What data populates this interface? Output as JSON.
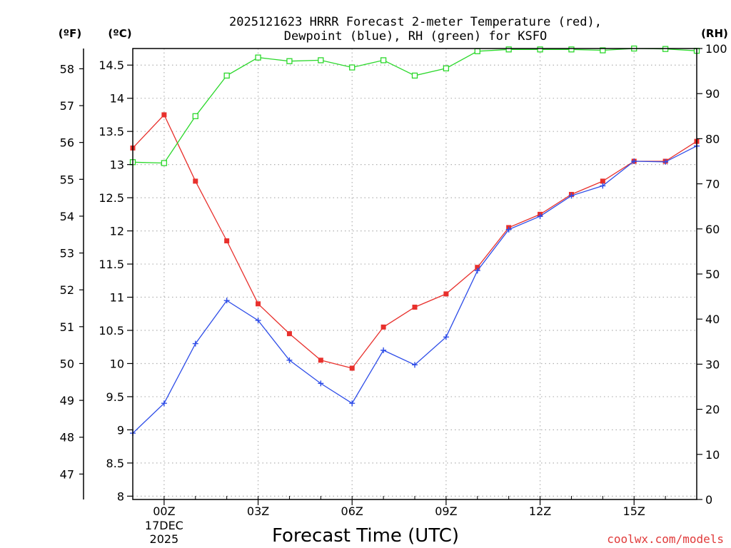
{
  "chart_data": {
    "type": "line",
    "title_line1": "2025121623 HRRR Forecast 2-meter Temperature (red),",
    "title_line2": "Dewpoint (blue), RH (green) for KSFO",
    "xlabel": "Forecast Time (UTC)",
    "credit": "coolwx.com/models",
    "units": {
      "fahrenheit": "(ºF)",
      "celsius": "(ºC)",
      "rh": "(RH)"
    },
    "x": [
      -1,
      0,
      1,
      2,
      3,
      4,
      5,
      6,
      7,
      8,
      9,
      10,
      11,
      12,
      13,
      14,
      15,
      16,
      17
    ],
    "xlim": [
      -1,
      17
    ],
    "x_ticks": [
      {
        "x": 0,
        "label": "00Z",
        "date1": "17DEC",
        "date2": "2025"
      },
      {
        "x": 3,
        "label": "03Z"
      },
      {
        "x": 6,
        "label": "06Z"
      },
      {
        "x": 9,
        "label": "09Z"
      },
      {
        "x": 12,
        "label": "12Z"
      },
      {
        "x": 15,
        "label": "15Z"
      }
    ],
    "ylim_c": [
      7.95,
      14.75
    ],
    "c_ticks": [
      "8",
      "8.5",
      "9",
      "9.5",
      "10",
      "10.5",
      "11",
      "11.5",
      "12",
      "12.5",
      "13",
      "13.5",
      "14",
      "14.5"
    ],
    "f_ticks": [
      "47",
      "48",
      "49",
      "50",
      "51",
      "52",
      "53",
      "54",
      "55",
      "56",
      "57",
      "58"
    ],
    "rh_ticks": [
      "0",
      "10",
      "20",
      "30",
      "40",
      "50",
      "60",
      "70",
      "80",
      "90",
      "100"
    ],
    "series": [
      {
        "name": "Temperature",
        "axis": "c",
        "color": "#e8302c",
        "marker": "filled-square",
        "values": [
          13.25,
          13.75,
          12.75,
          11.85,
          10.9,
          10.45,
          10.05,
          9.93,
          10.55,
          10.85,
          11.05,
          11.45,
          12.05,
          12.25,
          12.55,
          12.75,
          13.05,
          13.05,
          13.35
        ]
      },
      {
        "name": "Dewpoint",
        "axis": "c",
        "color": "#2e4de8",
        "marker": "plus",
        "values": [
          8.95,
          9.4,
          10.3,
          10.95,
          10.65,
          10.05,
          9.7,
          9.4,
          10.2,
          9.98,
          10.4,
          11.4,
          12.02,
          12.22,
          12.53,
          12.68,
          13.05,
          13.04,
          13.28
        ]
      },
      {
        "name": "RH",
        "axis": "rh",
        "color": "#2bd82b",
        "marker": "open-square",
        "values": [
          74.8,
          74.6,
          85,
          94,
          98,
          97.2,
          97.4,
          95.8,
          97.4,
          94,
          95.6,
          99.4,
          99.8,
          99.8,
          99.8,
          99.6,
          100,
          99.9,
          99.5
        ]
      }
    ]
  }
}
